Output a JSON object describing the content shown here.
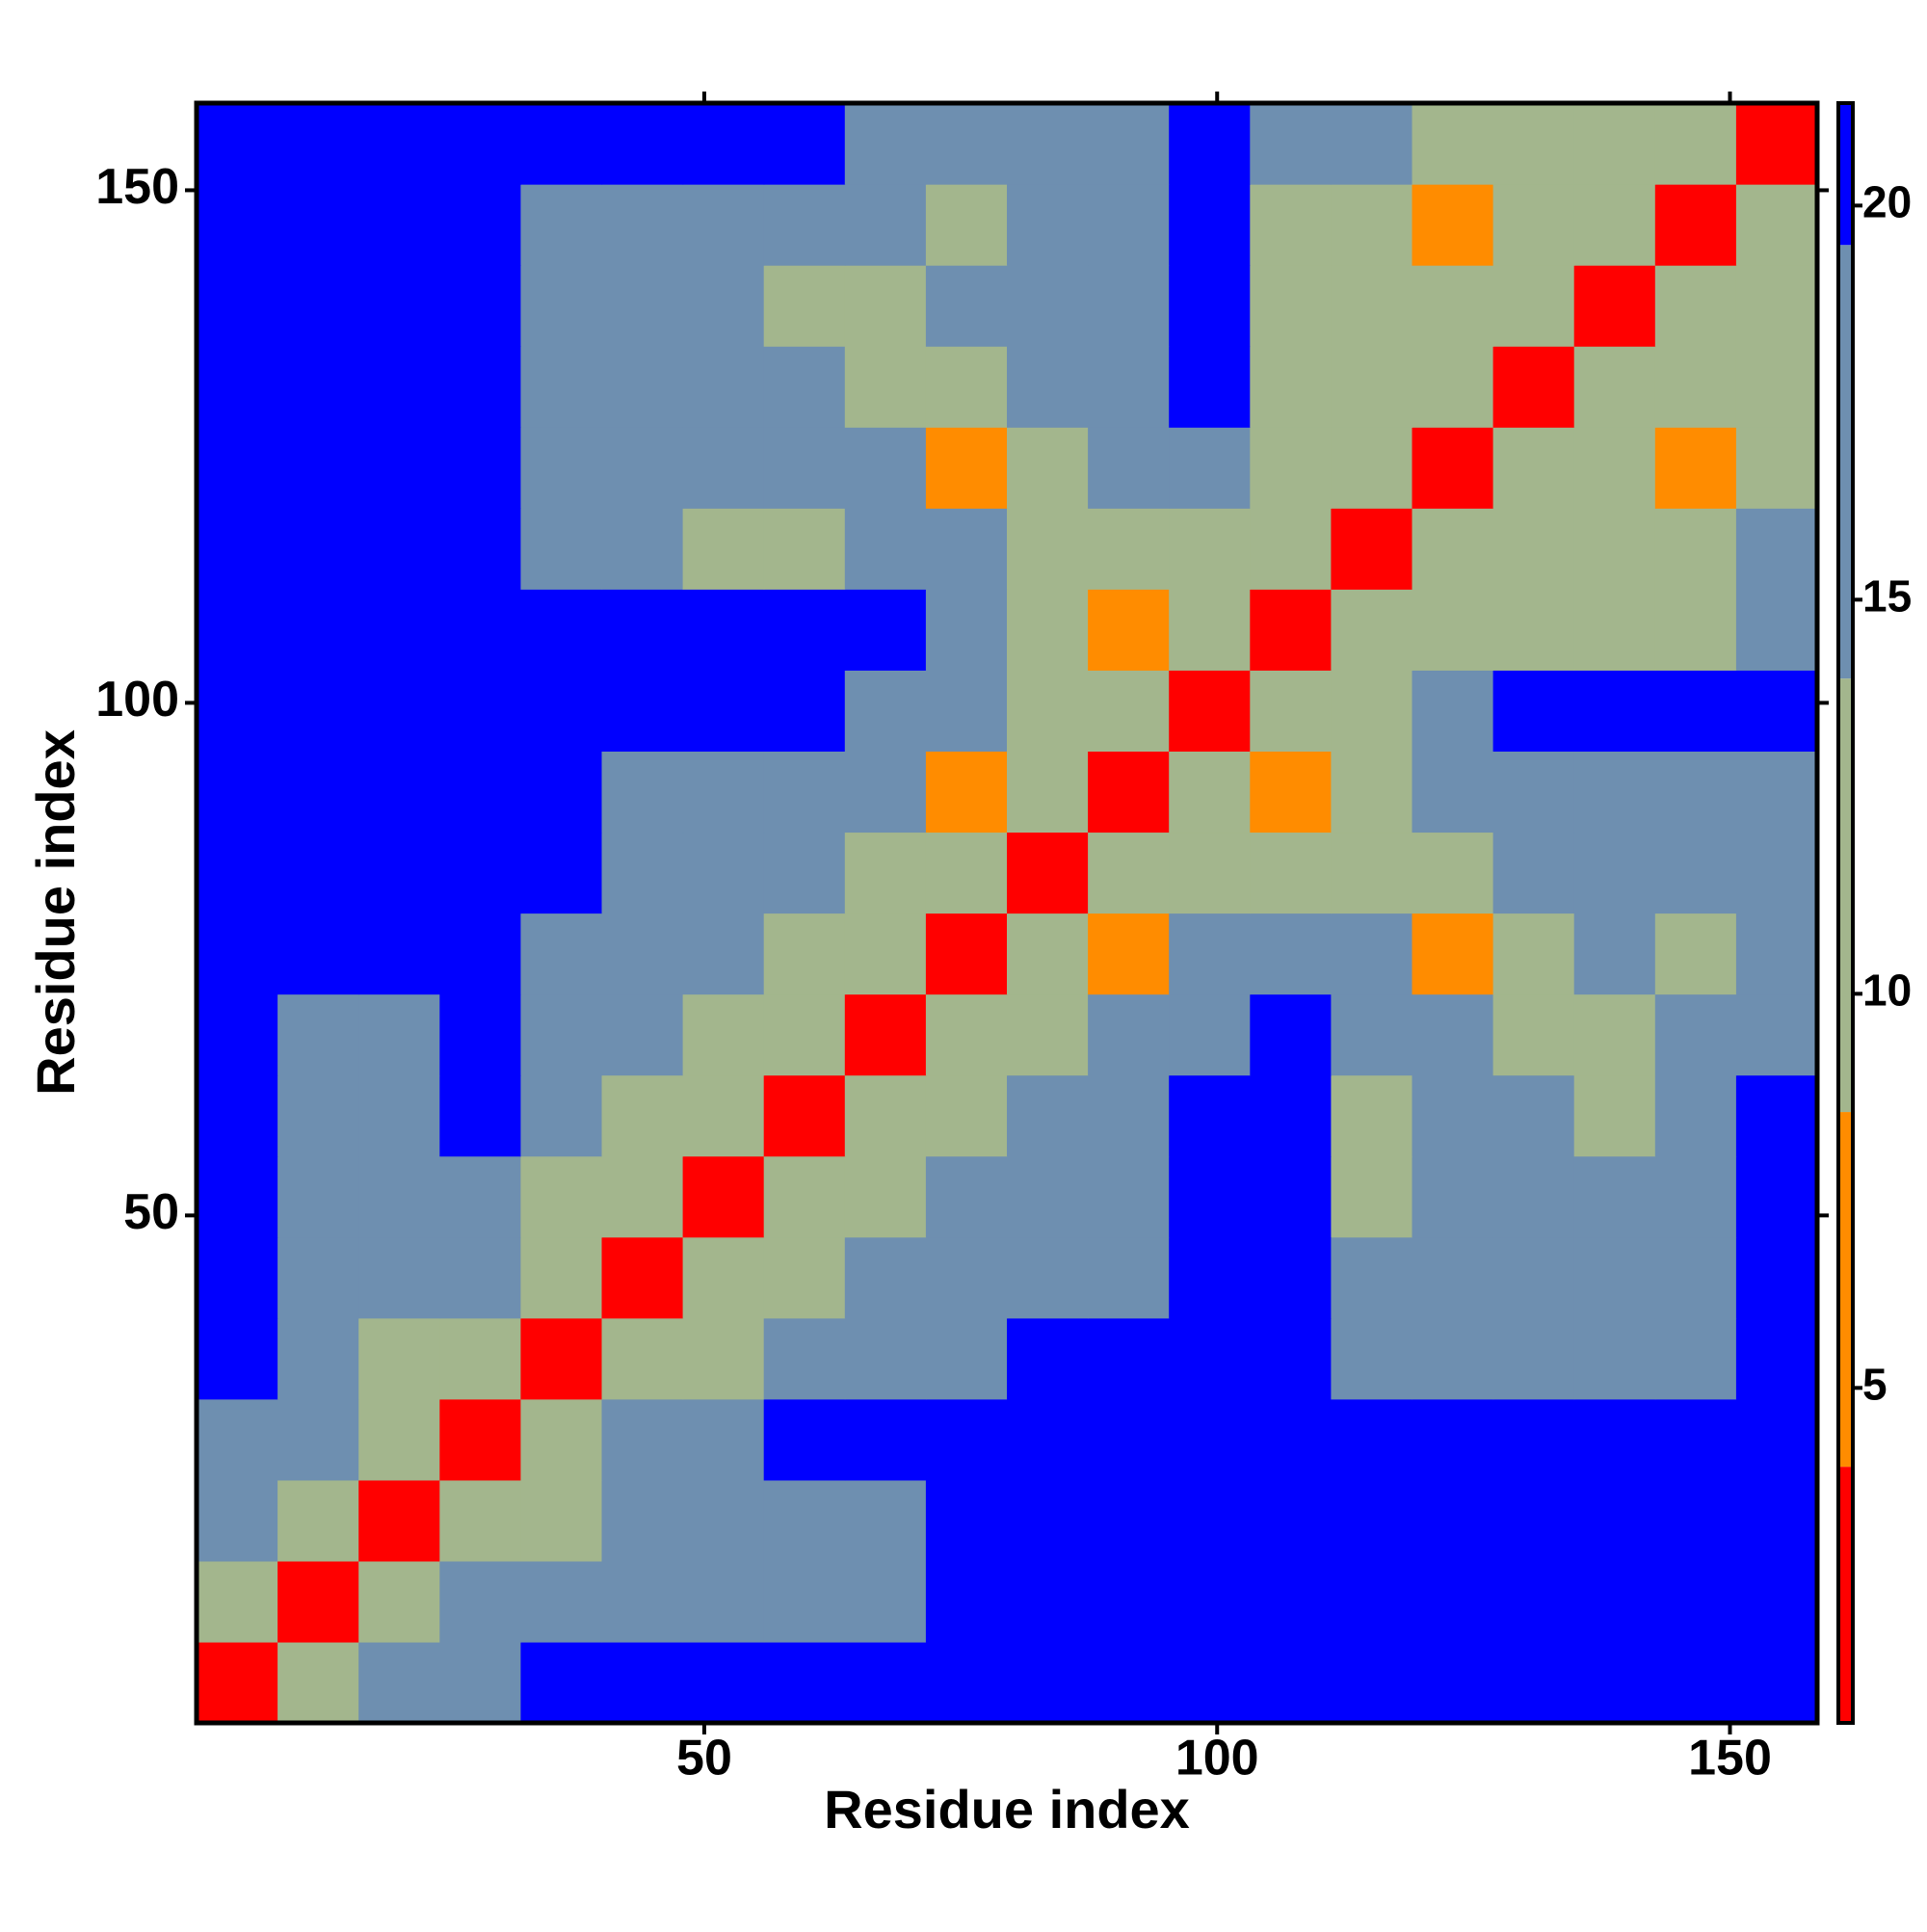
{
  "chart_data": {
    "type": "heatmap",
    "x_label": "Residue index",
    "y_label": "Residue index",
    "xbins": [
      0.5,
      8.4,
      16.3,
      24.2,
      32.1,
      40,
      47.9,
      55.8,
      63.7,
      71.6,
      79.5,
      87.4,
      95.3,
      103.2,
      111.1,
      119,
      126.9,
      134.8,
      142.7,
      150.6,
      158.5
    ],
    "ybins": [
      0.5,
      8.4,
      16.3,
      24.2,
      32.1,
      40,
      47.9,
      55.8,
      63.7,
      71.6,
      79.5,
      87.4,
      95.3,
      103.2,
      111.1,
      119,
      126.9,
      134.8,
      142.7,
      150.6,
      158.5
    ],
    "z": [
      [
        3,
        12,
        15,
        18,
        21,
        21,
        21,
        21,
        21,
        21,
        21,
        21,
        21,
        21,
        21,
        21,
        21,
        21,
        21,
        21
      ],
      [
        12,
        3,
        12,
        15,
        16,
        16,
        18,
        15,
        18,
        21,
        21,
        21,
        21,
        21,
        21,
        21,
        21,
        21,
        21,
        21
      ],
      [
        15,
        12,
        3,
        12,
        13,
        15,
        18,
        17,
        15,
        21,
        21,
        21,
        21,
        21,
        21,
        21,
        21,
        21,
        21,
        21
      ],
      [
        18,
        15,
        12,
        3,
        12,
        15,
        18,
        21,
        21,
        21,
        21,
        21,
        21,
        21,
        21,
        21,
        21,
        21,
        21,
        21
      ],
      [
        21,
        16,
        13,
        12,
        3,
        12,
        12,
        14,
        15,
        18,
        21,
        21,
        21,
        21,
        16,
        15,
        16,
        16,
        16,
        21
      ],
      [
        21,
        16,
        15,
        15,
        12,
        3,
        10,
        12,
        14,
        16,
        17,
        18,
        21,
        21,
        14,
        15,
        14,
        15,
        14,
        21
      ],
      [
        21,
        18,
        18,
        18,
        12,
        10,
        3,
        9,
        12,
        15,
        16,
        17,
        21,
        21,
        12,
        18,
        16,
        16,
        17,
        21
      ],
      [
        21,
        15,
        17,
        21,
        14,
        12,
        9,
        3,
        9,
        12,
        15,
        16,
        21,
        21,
        11,
        15,
        14,
        13,
        15,
        21
      ],
      [
        21,
        18,
        15,
        21,
        15,
        14,
        12,
        9,
        3,
        12,
        12,
        15,
        18,
        20,
        14,
        14,
        9,
        13,
        14,
        18
      ],
      [
        21,
        21,
        21,
        21,
        18,
        16,
        15,
        12,
        12,
        3,
        10,
        8,
        15,
        16,
        14,
        8,
        10,
        14,
        13,
        15
      ],
      [
        21,
        21,
        21,
        21,
        21,
        17,
        16,
        15,
        12,
        10,
        3,
        10,
        12,
        9,
        9,
        11,
        14,
        15,
        16,
        18
      ],
      [
        21,
        21,
        21,
        21,
        21,
        18,
        17,
        16,
        15,
        8,
        10,
        3,
        10,
        8,
        13,
        14,
        15,
        16,
        16,
        18
      ],
      [
        21,
        21,
        21,
        21,
        21,
        21,
        21,
        21,
        18,
        15,
        12,
        10,
        3,
        10,
        13,
        18,
        21,
        21,
        21,
        21
      ],
      [
        21,
        21,
        21,
        21,
        21,
        21,
        21,
        21,
        20,
        16,
        9,
        8,
        10,
        3,
        11,
        12,
        13,
        12,
        13,
        16
      ],
      [
        21,
        21,
        21,
        21,
        16,
        14,
        12,
        11,
        14,
        14,
        9,
        13,
        13,
        11,
        3,
        11,
        11,
        10,
        11,
        14
      ],
      [
        21,
        21,
        21,
        21,
        15,
        15,
        18,
        15,
        14,
        8,
        11,
        14,
        18,
        12,
        11,
        3,
        11,
        9,
        8,
        13
      ],
      [
        21,
        21,
        21,
        21,
        16,
        14,
        16,
        14,
        9,
        10,
        14,
        15,
        21,
        13,
        11,
        11,
        3,
        11,
        9,
        13
      ],
      [
        21,
        21,
        21,
        21,
        16,
        15,
        16,
        13,
        13,
        14,
        15,
        16,
        21,
        12,
        10,
        9,
        11,
        3,
        11,
        12
      ],
      [
        21,
        21,
        21,
        21,
        16,
        14,
        17,
        15,
        14,
        13,
        16,
        16,
        21,
        13,
        11,
        8,
        9,
        11,
        3,
        11
      ],
      [
        21,
        21,
        21,
        21,
        21,
        21,
        21,
        21,
        18,
        15,
        18,
        18,
        21,
        16,
        14,
        13,
        13,
        12,
        11,
        3
      ]
    ],
    "xlim": [
      0.5,
      158.5
    ],
    "ylim": [
      0.5,
      158.5
    ],
    "xticks": [
      50,
      100,
      150
    ],
    "yticks": [
      50,
      100,
      150
    ],
    "zlim": [
      0.75,
      21.3
    ],
    "zticks": [
      5,
      10,
      15,
      20
    ],
    "colorscale": [
      {
        "from": 0.75,
        "color": "#ff0000"
      },
      {
        "from": 4,
        "color": "#ff8c00"
      },
      {
        "from": 8.5,
        "color": "#a3b68d"
      },
      {
        "from": 14,
        "color": "#6e8fb0"
      },
      {
        "from": 19.5,
        "color": "#0000ff"
      }
    ]
  }
}
